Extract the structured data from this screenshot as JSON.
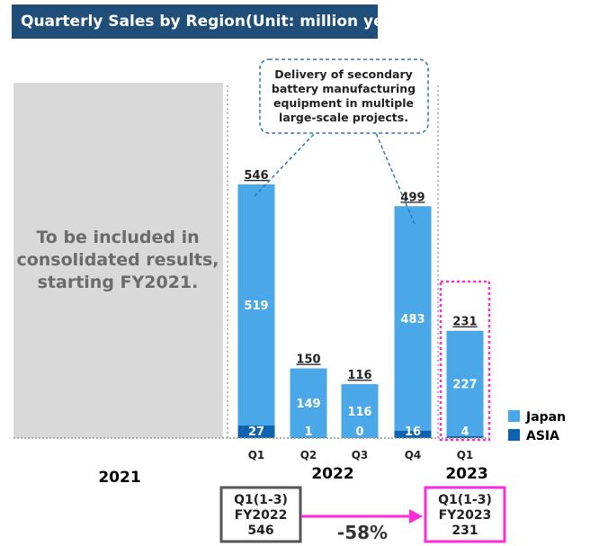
{
  "colors": {
    "japan": "#4aa8e8",
    "asia": "#0e63b0",
    "title_bg": "#1f4e79",
    "placeholder_bg": "#d9d9d9",
    "placeholder_text": "#6b6b6b",
    "callout": "#2e74b5",
    "highlight": "#ff2bd6"
  },
  "title": "Quarterly Sales by Region(Unit: million yen)",
  "placeholder_lines": [
    "To be included in",
    "consolidated results,",
    "starting FY2021."
  ],
  "callout_lines": [
    "Delivery of secondary",
    "battery manufacturing",
    "equipment in multiple",
    "large-scale projects."
  ],
  "years": {
    "y2021": "2021",
    "y2022": "2022",
    "y2023": "2023"
  },
  "comparison": {
    "left_lines": [
      "Q1(1-3)",
      "FY2022",
      "546"
    ],
    "right_lines": [
      "Q1(1-3)",
      "FY2023",
      "231"
    ],
    "change": "-58%"
  },
  "chart_data": {
    "type": "bar",
    "stacked": true,
    "title": "Quarterly Sales by Region(Unit: million yen)",
    "categories": [
      "Q1",
      "Q2",
      "Q3",
      "Q4",
      "Q1"
    ],
    "year_groups": [
      {
        "label": "2022",
        "categories": [
          "Q1",
          "Q2",
          "Q3",
          "Q4"
        ]
      },
      {
        "label": "2023",
        "categories": [
          "Q1"
        ]
      }
    ],
    "series": [
      {
        "name": "Japan",
        "values": [
          519,
          149,
          116,
          483,
          227
        ]
      },
      {
        "name": "ASIA",
        "values": [
          27,
          1,
          0,
          16,
          4
        ]
      }
    ],
    "totals": [
      546,
      150,
      116,
      499,
      231
    ],
    "ylim": [
      0,
      600
    ],
    "legend_position": "bottom-right"
  }
}
